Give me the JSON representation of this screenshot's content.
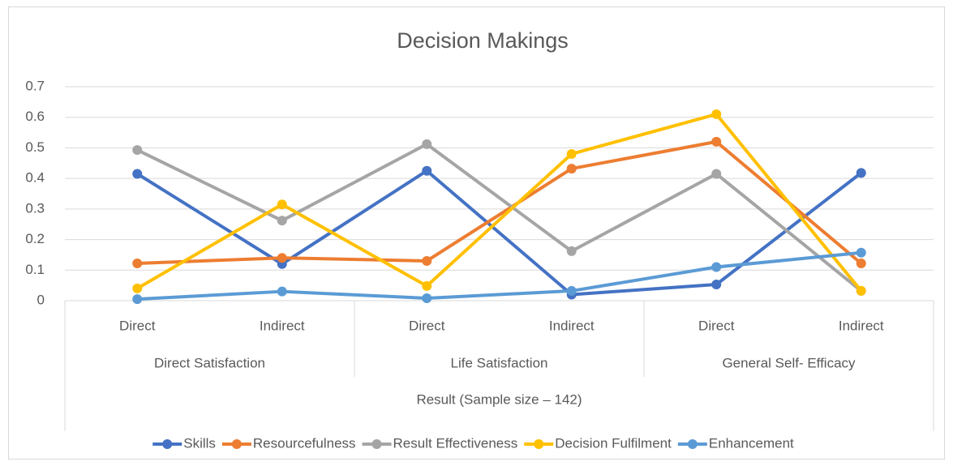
{
  "chart_data": {
    "type": "line",
    "title": "Decision Makings",
    "categories": [
      "Direct",
      "Indirect",
      "Direct",
      "Indirect",
      "Direct",
      "Indirect"
    ],
    "category_groups": [
      "Direct Satisfaction",
      "Life Satisfaction",
      "General Self- Efficacy"
    ],
    "x_label": "Result (Sample size – 142)",
    "series": [
      {
        "name": "Skills",
        "color": "#4472c4",
        "values": [
          0.415,
          0.12,
          0.425,
          0.02,
          0.053,
          0.418
        ]
      },
      {
        "name": "Resourcefulness",
        "color": "#ed7d31",
        "values": [
          0.122,
          0.14,
          0.13,
          0.432,
          0.52,
          0.122
        ]
      },
      {
        "name": "Result Effectiveness",
        "color": "#a5a5a5",
        "values": [
          0.493,
          0.262,
          0.512,
          0.162,
          0.415,
          0.032
        ]
      },
      {
        "name": "Decision Fulfilment",
        "color": "#ffc000",
        "values": [
          0.04,
          0.315,
          0.048,
          0.48,
          0.61,
          0.032
        ]
      },
      {
        "name": "Enhancement",
        "color": "#5b9bd5",
        "values": [
          0.005,
          0.03,
          0.008,
          0.032,
          0.11,
          0.157
        ]
      }
    ],
    "ylim": [
      0,
      0.7
    ],
    "yticks": [
      0,
      0.1,
      0.2,
      0.3,
      0.4,
      0.5,
      0.6,
      0.7
    ],
    "grid": true,
    "legend": "bottom"
  }
}
